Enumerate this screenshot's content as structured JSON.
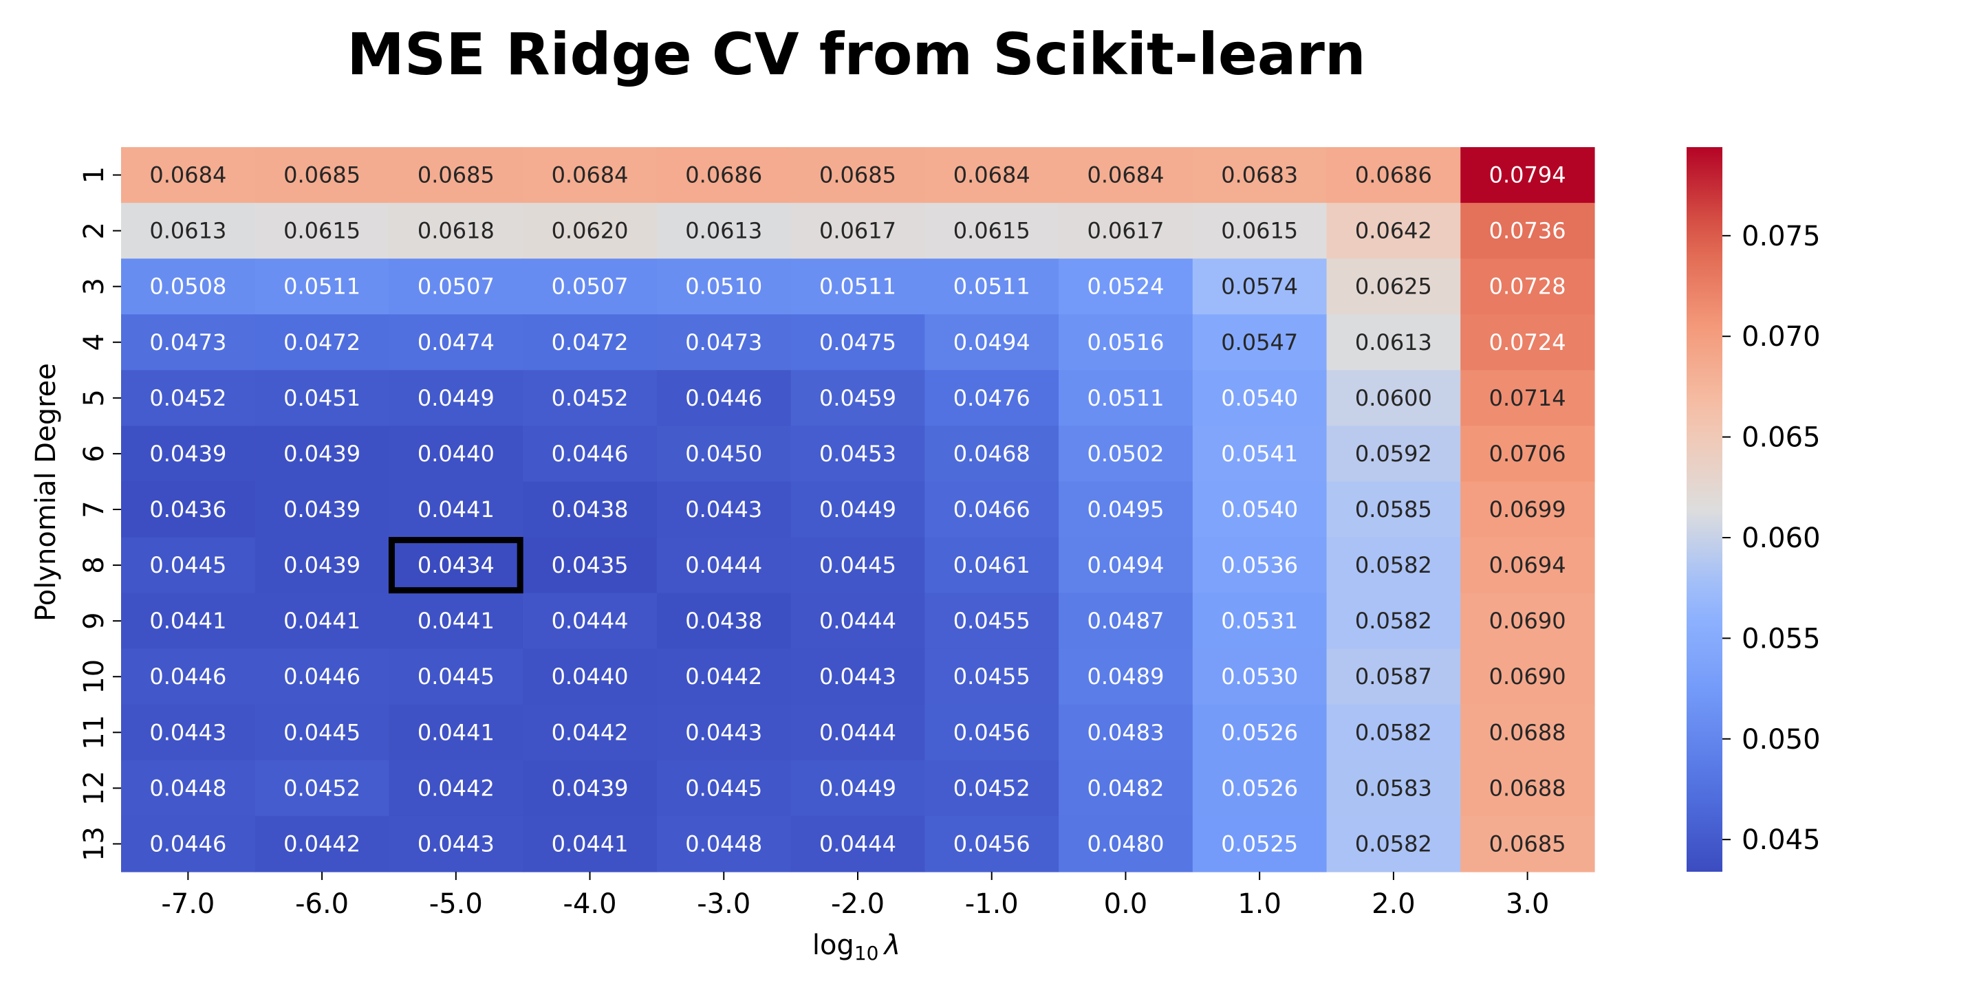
{
  "chart_data": {
    "type": "heatmap",
    "title": "MSE Ridge CV from Scikit-learn",
    "xlabel": "log",
    "xlabel_sub": "10",
    "xlabel_greek": "λ",
    "ylabel": "Polynomial Degree",
    "x_ticks": [
      "-7.0",
      "-6.0",
      "-5.0",
      "-4.0",
      "-3.0",
      "-2.0",
      "-1.0",
      "0.0",
      "1.0",
      "2.0",
      "3.0"
    ],
    "y_ticks": [
      "1",
      "2",
      "3",
      "4",
      "5",
      "6",
      "7",
      "8",
      "9",
      "10",
      "11",
      "12",
      "13"
    ],
    "values": [
      [
        "0.0684",
        "0.0685",
        "0.0685",
        "0.0684",
        "0.0686",
        "0.0685",
        "0.0684",
        "0.0684",
        "0.0683",
        "0.0686",
        "0.0794"
      ],
      [
        "0.0613",
        "0.0615",
        "0.0618",
        "0.0620",
        "0.0613",
        "0.0617",
        "0.0615",
        "0.0617",
        "0.0615",
        "0.0642",
        "0.0736"
      ],
      [
        "0.0508",
        "0.0511",
        "0.0507",
        "0.0507",
        "0.0510",
        "0.0511",
        "0.0511",
        "0.0524",
        "0.0574",
        "0.0625",
        "0.0728"
      ],
      [
        "0.0473",
        "0.0472",
        "0.0474",
        "0.0472",
        "0.0473",
        "0.0475",
        "0.0494",
        "0.0516",
        "0.0547",
        "0.0613",
        "0.0724"
      ],
      [
        "0.0452",
        "0.0451",
        "0.0449",
        "0.0452",
        "0.0446",
        "0.0459",
        "0.0476",
        "0.0511",
        "0.0540",
        "0.0600",
        "0.0714"
      ],
      [
        "0.0439",
        "0.0439",
        "0.0440",
        "0.0446",
        "0.0450",
        "0.0453",
        "0.0468",
        "0.0502",
        "0.0541",
        "0.0592",
        "0.0706"
      ],
      [
        "0.0436",
        "0.0439",
        "0.0441",
        "0.0438",
        "0.0443",
        "0.0449",
        "0.0466",
        "0.0495",
        "0.0540",
        "0.0585",
        "0.0699"
      ],
      [
        "0.0445",
        "0.0439",
        "0.0434",
        "0.0435",
        "0.0444",
        "0.0445",
        "0.0461",
        "0.0494",
        "0.0536",
        "0.0582",
        "0.0694"
      ],
      [
        "0.0441",
        "0.0441",
        "0.0441",
        "0.0444",
        "0.0438",
        "0.0444",
        "0.0455",
        "0.0487",
        "0.0531",
        "0.0582",
        "0.0690"
      ],
      [
        "0.0446",
        "0.0446",
        "0.0445",
        "0.0440",
        "0.0442",
        "0.0443",
        "0.0455",
        "0.0489",
        "0.0530",
        "0.0587",
        "0.0690"
      ],
      [
        "0.0443",
        "0.0445",
        "0.0441",
        "0.0442",
        "0.0443",
        "0.0444",
        "0.0456",
        "0.0483",
        "0.0526",
        "0.0582",
        "0.0688"
      ],
      [
        "0.0448",
        "0.0452",
        "0.0442",
        "0.0439",
        "0.0445",
        "0.0449",
        "0.0452",
        "0.0482",
        "0.0526",
        "0.0583",
        "0.0688"
      ],
      [
        "0.0446",
        "0.0442",
        "0.0443",
        "0.0441",
        "0.0448",
        "0.0444",
        "0.0456",
        "0.0480",
        "0.0525",
        "0.0582",
        "0.0685"
      ]
    ],
    "highlight": {
      "row": 7,
      "col": 2
    },
    "colormap": "coolwarm",
    "vmin": 0.0434,
    "vmax": 0.0794,
    "colorbar_ticks": [
      "0.045",
      "0.050",
      "0.055",
      "0.060",
      "0.065",
      "0.070",
      "0.075"
    ],
    "colorbar_tick_values": [
      0.045,
      0.05,
      0.055,
      0.06,
      0.065,
      0.07,
      0.075
    ]
  }
}
